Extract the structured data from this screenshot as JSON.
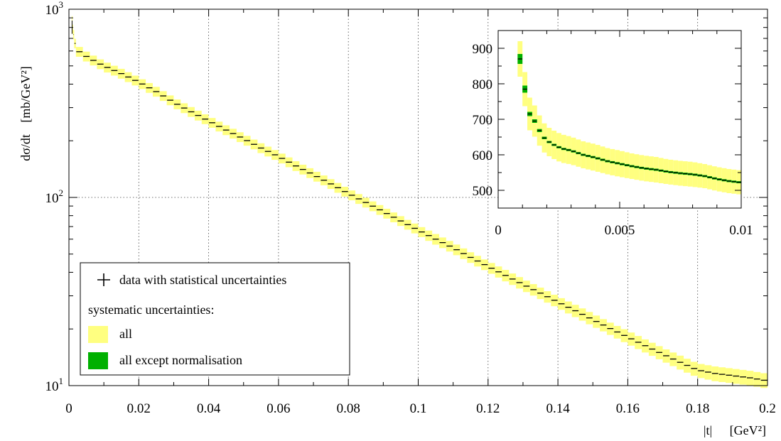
{
  "colors": {
    "sys_all": "#ffff80",
    "sys_norm": "#00b000",
    "data": "#000000",
    "grid": "#444444"
  },
  "legend": {
    "data_label": "data with statistical uncertainties",
    "header": "systematic uncertainties:",
    "all_label": "all",
    "norm_label": "all except normalisation"
  },
  "chart_data": [
    {
      "type": "line",
      "ylabel_main": "dσ/dt",
      "ylabel_unit": "[mb/GeV²]",
      "xlabel_var": "|t|",
      "xlabel_unit": "[GeV²]",
      "xlim": [
        0,
        0.2
      ],
      "ylim": [
        10,
        1000
      ],
      "yscale": "log",
      "grid": "dotted",
      "legend_position": "bottom-left",
      "x_ticks": [
        "0",
        "0.02",
        "0.04",
        "0.06",
        "0.08",
        "0.1",
        "0.12",
        "0.14",
        "0.16",
        "0.18",
        "0.2"
      ],
      "y_ticks": [
        {
          "base": "10",
          "exp": "1"
        },
        {
          "base": "10",
          "exp": "2"
        },
        {
          "base": "10",
          "exp": "3"
        }
      ],
      "series": [
        {
          "x": [
            0.0009,
            0.0011,
            0.002,
            0.004,
            0.006,
            0.008,
            0.01,
            0.015,
            0.02,
            0.025,
            0.03,
            0.035,
            0.04,
            0.045,
            0.05,
            0.055,
            0.06,
            0.065,
            0.07,
            0.075,
            0.08,
            0.085,
            0.09,
            0.095,
            0.1,
            0.105,
            0.11,
            0.115,
            0.12,
            0.125,
            0.13,
            0.135,
            0.14,
            0.145,
            0.15,
            0.155,
            0.16,
            0.165,
            0.17,
            0.175,
            0.18,
            0.185,
            0.19,
            0.195,
            0.2
          ],
          "y": [
            872,
            785,
            615,
            575,
            548,
            522,
            500,
            455,
            410,
            365,
            320,
            285,
            255,
            228,
            205,
            183,
            165,
            147,
            132,
            118,
            105,
            94,
            84,
            75,
            67,
            60,
            54,
            48,
            43,
            38.5,
            34.5,
            31,
            27.8,
            25,
            22.4,
            20.1,
            18.1,
            16.3,
            14.7,
            13.3,
            12.1,
            11.6,
            11.3,
            11.0,
            10.6
          ],
          "sys_rel": [
            0.055,
            0.055,
            0.06,
            0.06,
            0.06,
            0.06,
            0.06,
            0.06,
            0.06,
            0.06,
            0.06,
            0.06,
            0.06,
            0.06,
            0.06,
            0.06,
            0.06,
            0.06,
            0.06,
            0.06,
            0.06,
            0.06,
            0.06,
            0.06,
            0.06,
            0.065,
            0.065,
            0.065,
            0.065,
            0.07,
            0.07,
            0.07,
            0.07,
            0.075,
            0.075,
            0.075,
            0.08,
            0.08,
            0.08,
            0.085,
            0.085,
            0.09,
            0.09,
            0.09,
            0.09
          ]
        }
      ]
    },
    {
      "type": "line",
      "xlim": [
        0,
        0.01
      ],
      "ylim": [
        450,
        950
      ],
      "yscale": "linear",
      "grid": "off",
      "x_ticks": [
        "0",
        "0.005",
        "0.01"
      ],
      "y_ticks": [
        "500",
        "600",
        "700",
        "800",
        "900"
      ],
      "series": [
        {
          "x": [
            0.0009,
            0.0011,
            0.0013,
            0.0015,
            0.0018,
            0.002,
            0.0023,
            0.0026,
            0.003,
            0.0035,
            0.004,
            0.0045,
            0.005,
            0.0055,
            0.006,
            0.0065,
            0.007,
            0.0075,
            0.008,
            0.0085,
            0.009,
            0.0095,
            0.01
          ],
          "y": [
            870,
            785,
            715,
            695,
            655,
            640,
            628,
            618,
            612,
            600,
            592,
            582,
            575,
            568,
            562,
            558,
            552,
            548,
            545,
            540,
            532,
            526,
            522
          ],
          "sys_abs": [
            50,
            48,
            46,
            44,
            42,
            40,
            40,
            40,
            39,
            38,
            38,
            37,
            37,
            36,
            36,
            36,
            35,
            35,
            35,
            34,
            34,
            34,
            34
          ],
          "norm_abs": [
            14,
            10,
            6,
            5,
            4,
            3,
            3,
            3,
            3,
            3,
            3,
            3,
            3,
            3,
            3,
            3,
            3,
            3,
            3,
            3,
            3,
            3,
            3
          ]
        }
      ]
    }
  ]
}
